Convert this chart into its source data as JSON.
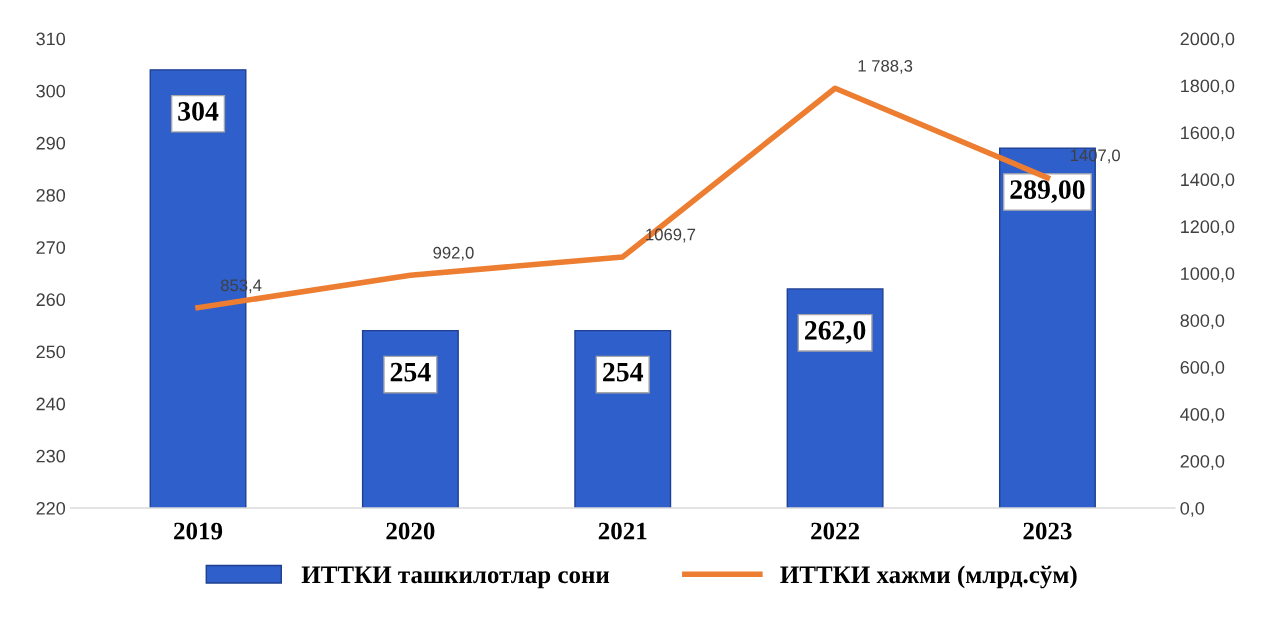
{
  "chart_data": {
    "type": "bar",
    "categories": [
      "2019",
      "2020",
      "2021",
      "2022",
      "2023"
    ],
    "series": [
      {
        "name": "ИТТКИ ташкилотлар сони",
        "color": "#2f5fcb",
        "values": [
          304,
          254,
          254,
          262,
          289
        ],
        "value_labels": [
          "304",
          "254",
          "254",
          "262,0",
          "289,00"
        ]
      },
      {
        "name": "ИТТКИ хажми (млрд.сўм)",
        "type": "line",
        "axis": "y2",
        "color": "#ed7d31",
        "values": [
          853.4,
          992.0,
          1069.7,
          1788.3,
          1407.0
        ],
        "value_labels": [
          "853,4",
          "992,0",
          "1069,7",
          "1 788,3",
          "1407,0"
        ]
      }
    ],
    "ylim": [
      220,
      310
    ],
    "yticks": [
      220,
      230,
      240,
      250,
      260,
      270,
      280,
      290,
      300,
      310
    ],
    "y2lim": [
      0,
      2000
    ],
    "y2ticks": [
      {
        "value": 0,
        "label": "0,0"
      },
      {
        "value": 200,
        "label": "200,0"
      },
      {
        "value": 400,
        "label": "400,0"
      },
      {
        "value": 600,
        "label": "600,0"
      },
      {
        "value": 800,
        "label": "800,0"
      },
      {
        "value": 1000,
        "label": "1000,0"
      },
      {
        "value": 1200,
        "label": "1200,0"
      },
      {
        "value": 1400,
        "label": "1400,0"
      },
      {
        "value": 1600,
        "label": "1600,0"
      },
      {
        "value": 1800,
        "label": "1800,0"
      },
      {
        "value": 2000,
        "label": "2000,0"
      }
    ],
    "grid": false,
    "legend": "bottom",
    "marker": "none",
    "line_style": "solid"
  }
}
